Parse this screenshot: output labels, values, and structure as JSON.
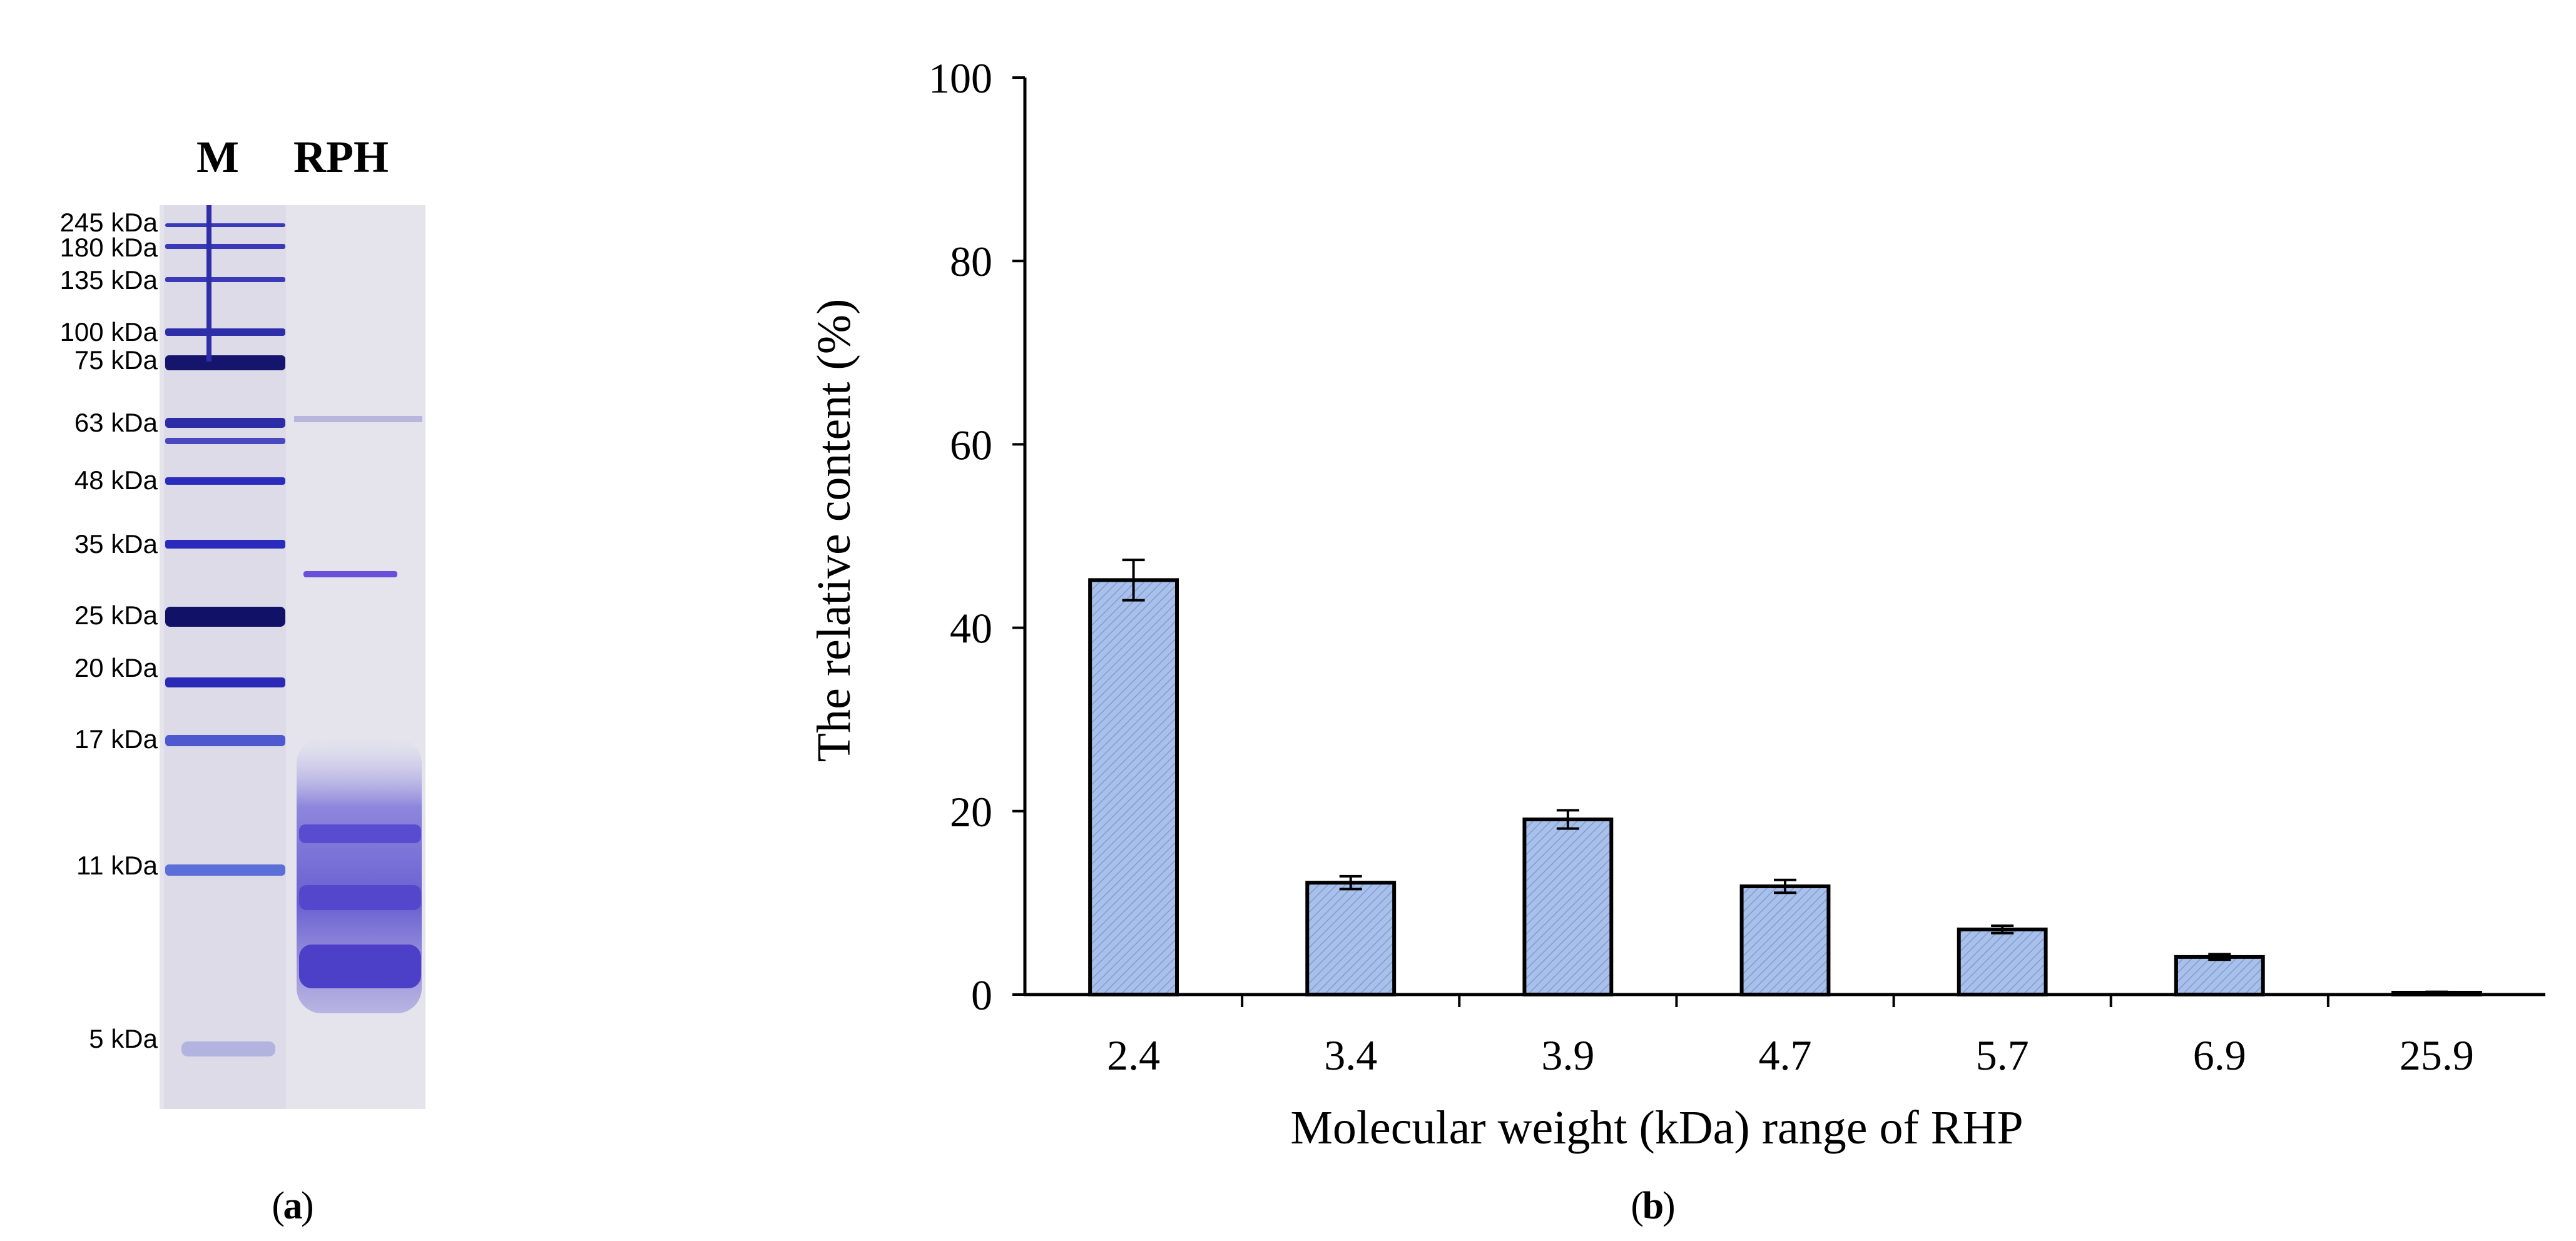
{
  "panel_a": {
    "caption": "a",
    "lane_labels": [
      "M",
      "RPH"
    ],
    "marker_labels": [
      "245 kDa",
      "180 kDa",
      "135 kDa",
      "100 kDa",
      "75 kDa",
      "63 kDa",
      "48 kDa",
      "35 kDa",
      "25 kDa",
      "20 kDa",
      "17 kDa",
      "11 kDa",
      "5 kDa"
    ]
  },
  "panel_b": {
    "caption": "b"
  },
  "chart_data": {
    "type": "bar",
    "title": "",
    "xlabel": "Molecular weight (kDa) range of RHP",
    "ylabel": "The relative content (%)",
    "categories": [
      "2.4",
      "3.4",
      "3.9",
      "4.7",
      "5.7",
      "6.9",
      "25.9"
    ],
    "values": [
      45.2,
      12.2,
      19.1,
      11.8,
      7.1,
      4.1,
      0.2
    ],
    "errors": [
      2.2,
      0.7,
      1.0,
      0.7,
      0.4,
      0.3,
      0.1
    ],
    "yticks": [
      0,
      20,
      40,
      60,
      80,
      100
    ],
    "ylim": [
      0,
      100
    ],
    "bar_color": "#a9c1ea",
    "grid": false
  }
}
